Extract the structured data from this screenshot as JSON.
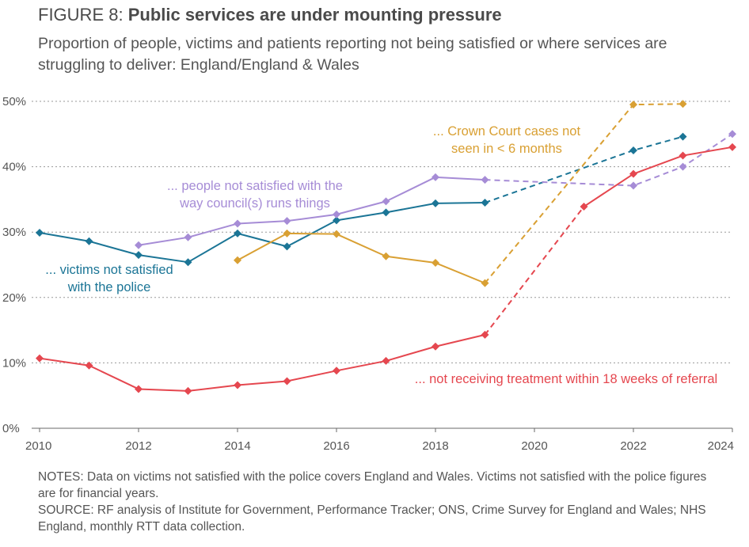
{
  "title": {
    "figure_label": "FIGURE 8:",
    "headline": "Public services are under mounting pressure"
  },
  "subtitle": "Proportion of people, victims and patients reporting not being satisfied or where services are struggling to deliver: England/England & Wales",
  "chart_data": {
    "type": "line",
    "xlim": [
      2010,
      2024
    ],
    "ylim": [
      0,
      50
    ],
    "x_ticks": [
      2010,
      2012,
      2014,
      2016,
      2018,
      2020,
      2022,
      2024
    ],
    "y_ticks": [
      0,
      10,
      20,
      30,
      40,
      50
    ],
    "y_tick_labels": [
      "0%",
      "10%",
      "20%",
      "30%",
      "40%",
      "50%"
    ],
    "grid": "horizontal dotted",
    "series": [
      {
        "name": "victims_police",
        "label_lines": [
          "... victims not satisfied",
          "with the police"
        ],
        "color": "#1b7596",
        "points": [
          [
            2010,
            29.9
          ],
          [
            2011,
            28.6
          ],
          [
            2012,
            26.5
          ],
          [
            2013,
            25.4
          ],
          [
            2014,
            29.8
          ],
          [
            2015,
            27.8
          ],
          [
            2016,
            31.8
          ],
          [
            2017,
            33.0
          ],
          [
            2018,
            34.4
          ],
          [
            2019,
            34.5
          ],
          [
            2022,
            42.5
          ],
          [
            2023,
            44.6
          ]
        ],
        "solid_until_index": 9
      },
      {
        "name": "council",
        "label_lines": [
          "... people not satisfied with the",
          "way council(s) runs things"
        ],
        "color": "#a68cd6",
        "points": [
          [
            2012,
            28.0
          ],
          [
            2013,
            29.2
          ],
          [
            2014,
            31.3
          ],
          [
            2015,
            31.7
          ],
          [
            2016,
            32.7
          ],
          [
            2017,
            34.7
          ],
          [
            2018,
            38.4
          ],
          [
            2019,
            38.0
          ],
          [
            2022,
            37.1
          ],
          [
            2023,
            40.0
          ],
          [
            2024,
            45.0
          ]
        ],
        "solid_until_index": 7
      },
      {
        "name": "crown_court",
        "label_lines": [
          "... Crown Court cases not",
          "seen in < 6 months"
        ],
        "color": "#d9a033",
        "points": [
          [
            2014,
            25.7
          ],
          [
            2015,
            29.8
          ],
          [
            2016,
            29.7
          ],
          [
            2017,
            26.3
          ],
          [
            2018,
            25.3
          ],
          [
            2019,
            22.2
          ],
          [
            2022,
            49.5
          ],
          [
            2023,
            49.6
          ]
        ],
        "solid_until_index": 5
      },
      {
        "name": "nhs_rtt",
        "label_lines": [
          "... not receiving treatment within 18 weeks of referral"
        ],
        "color": "#e5474f",
        "points": [
          [
            2010,
            10.7
          ],
          [
            2011,
            9.6
          ],
          [
            2012,
            6.0
          ],
          [
            2013,
            5.7
          ],
          [
            2014,
            6.6
          ],
          [
            2015,
            7.2
          ],
          [
            2016,
            8.8
          ],
          [
            2017,
            10.3
          ],
          [
            2018,
            12.5
          ],
          [
            2019,
            14.3
          ],
          [
            2021,
            33.9
          ],
          [
            2022,
            38.9
          ],
          [
            2023,
            41.7
          ],
          [
            2024,
            43.0
          ]
        ],
        "solid_until_index": 9,
        "solid_from_index": 10
      }
    ]
  },
  "notes": {
    "notes_text": "NOTES: Data on victims not satisfied with the police covers England and Wales. Victims not satisfied with the police figures are for financial years.",
    "source_text": "SOURCE: RF analysis of Institute for Government, Performance Tracker; ONS, Crime Survey for England and Wales; NHS England, monthly RTT data collection."
  }
}
